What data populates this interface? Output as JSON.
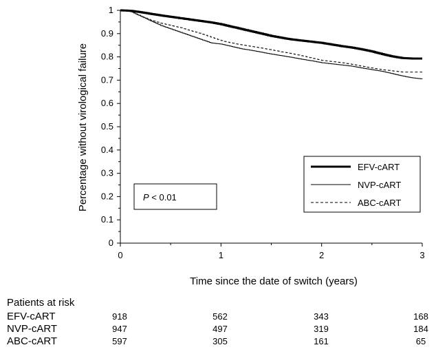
{
  "chart_data": {
    "type": "line",
    "title": "",
    "xlabel": "Time since the date of switch (years)",
    "ylabel": "Percentage without virological failure",
    "xlim": [
      0,
      3
    ],
    "ylim": [
      0,
      1
    ],
    "x_ticks": [
      "0",
      "1",
      "2",
      "3"
    ],
    "y_ticks": [
      "0",
      "0.1",
      "0.2",
      "0.3",
      "0.4",
      "0.5",
      "0.6",
      "0.7",
      "0.8",
      "0.9",
      "1"
    ],
    "grid": false,
    "legend_position": "bottom-right",
    "annotation": {
      "p_italic": "P",
      "rest": " < 0.01"
    },
    "series": [
      {
        "name": "EFV-cART",
        "style": "thick-solid",
        "x": [
          0,
          0.1,
          0.2,
          0.3,
          0.4,
          0.5,
          0.6,
          0.7,
          0.8,
          0.9,
          1.0,
          1.1,
          1.2,
          1.3,
          1.4,
          1.5,
          1.6,
          1.7,
          1.8,
          1.9,
          2.0,
          2.1,
          2.2,
          2.3,
          2.4,
          2.5,
          2.6,
          2.7,
          2.8,
          2.9,
          3.0
        ],
        "y": [
          1.0,
          0.998,
          0.992,
          0.985,
          0.978,
          0.972,
          0.966,
          0.96,
          0.954,
          0.948,
          0.94,
          0.93,
          0.92,
          0.91,
          0.9,
          0.89,
          0.882,
          0.875,
          0.87,
          0.865,
          0.86,
          0.853,
          0.846,
          0.84,
          0.832,
          0.823,
          0.812,
          0.802,
          0.795,
          0.793,
          0.793
        ]
      },
      {
        "name": "NVP-cART",
        "style": "thin-solid",
        "x": [
          0,
          0.1,
          0.2,
          0.3,
          0.4,
          0.5,
          0.6,
          0.7,
          0.8,
          0.9,
          1.0,
          1.1,
          1.2,
          1.3,
          1.4,
          1.5,
          1.6,
          1.7,
          1.8,
          1.9,
          2.0,
          2.1,
          2.2,
          2.3,
          2.4,
          2.5,
          2.6,
          2.7,
          2.8,
          2.9,
          3.0
        ],
        "y": [
          1.0,
          0.995,
          0.975,
          0.955,
          0.935,
          0.92,
          0.905,
          0.89,
          0.875,
          0.86,
          0.855,
          0.845,
          0.835,
          0.828,
          0.82,
          0.812,
          0.805,
          0.798,
          0.79,
          0.783,
          0.775,
          0.77,
          0.765,
          0.76,
          0.752,
          0.745,
          0.738,
          0.728,
          0.718,
          0.71,
          0.705
        ]
      },
      {
        "name": "ABC-cART",
        "style": "dashed",
        "x": [
          0,
          0.1,
          0.2,
          0.3,
          0.4,
          0.5,
          0.6,
          0.7,
          0.8,
          0.9,
          1.0,
          1.1,
          1.2,
          1.3,
          1.4,
          1.5,
          1.6,
          1.7,
          1.8,
          1.9,
          2.0,
          2.1,
          2.2,
          2.3,
          2.4,
          2.5,
          2.6,
          2.7,
          2.8,
          2.9,
          3.0
        ],
        "y": [
          1.0,
          0.995,
          0.975,
          0.958,
          0.945,
          0.935,
          0.925,
          0.912,
          0.9,
          0.885,
          0.87,
          0.86,
          0.852,
          0.845,
          0.838,
          0.83,
          0.822,
          0.814,
          0.805,
          0.795,
          0.785,
          0.78,
          0.775,
          0.768,
          0.76,
          0.752,
          0.745,
          0.74,
          0.735,
          0.735,
          0.735
        ]
      }
    ]
  },
  "risk_table": {
    "title": "Patients at risk",
    "rows": [
      {
        "name": "EFV-cART",
        "values": [
          "918",
          "562",
          "343",
          "168"
        ]
      },
      {
        "name": "NVP-cART",
        "values": [
          "947",
          "497",
          "319",
          "184"
        ]
      },
      {
        "name": "ABC-cART",
        "values": [
          "597",
          "305",
          "161",
          "65"
        ]
      }
    ]
  }
}
